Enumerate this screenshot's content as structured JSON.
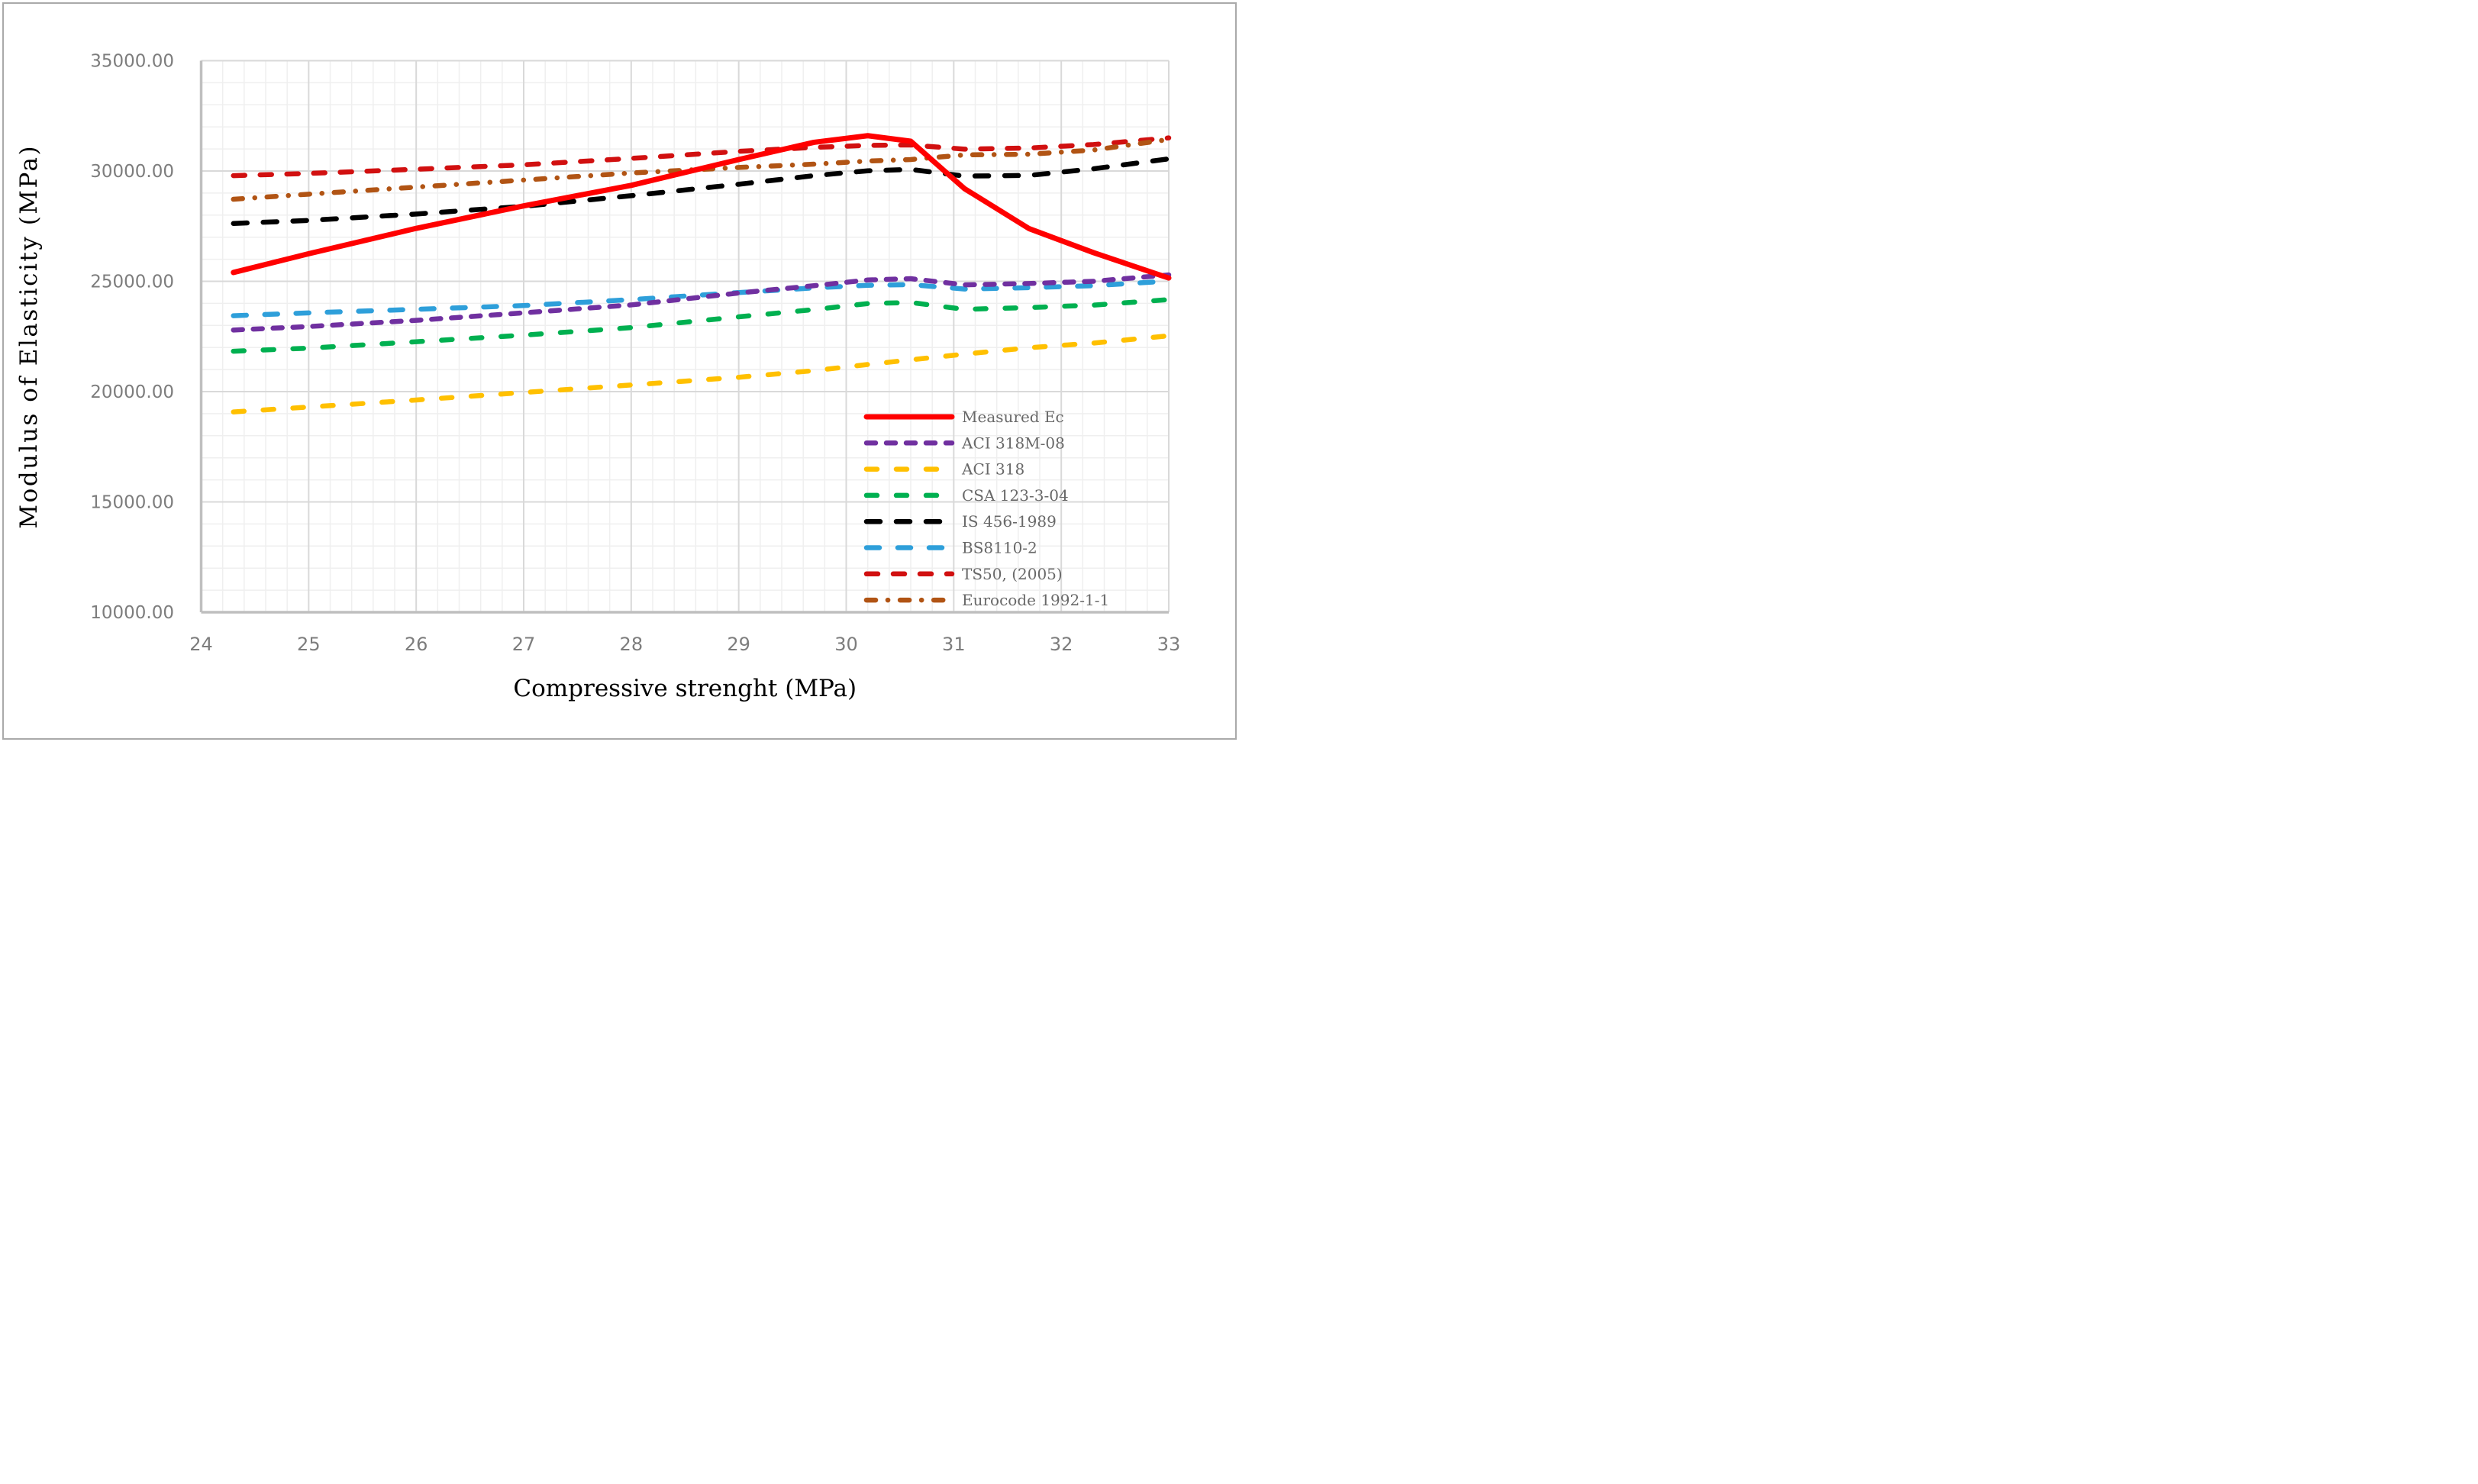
{
  "figure": {
    "type": "line-chart-figure",
    "background": "#ffffff",
    "frame_border_color": "#aaaaaa"
  },
  "chart_data": {
    "type": "line",
    "title": "",
    "xlabel": "Compressive strenght (MPa)",
    "ylabel": "Modulus of Elasticity (MPa)",
    "xlim": [
      24,
      33
    ],
    "ylim": [
      10000,
      35000
    ],
    "x_major_step": 1,
    "x_minor_step": 0.2,
    "y_major_step": 5000,
    "y_minor_step": 1000,
    "grid": "on",
    "x_tick_labels": [
      "24",
      "25",
      "26",
      "27",
      "28",
      "29",
      "30",
      "31",
      "32",
      "33"
    ],
    "x_tick_values": [
      24,
      25,
      26,
      27,
      28,
      29,
      30,
      31,
      32,
      33
    ],
    "y_tick_labels": [
      "35000.00",
      "30000.00",
      "25000.00",
      "20000.00",
      "15000.00",
      "10000.00"
    ],
    "y_tick_values": [
      35000,
      30000,
      25000,
      20000,
      15000,
      10000
    ],
    "x": [
      24.3,
      25,
      26,
      27,
      28,
      29,
      29.7,
      30.2,
      30.6,
      31.1,
      31.7,
      32.3,
      33
    ],
    "series": [
      {
        "name": "Measured Ec",
        "color": "#ff0000",
        "style": "solid",
        "width": 7,
        "dash": "",
        "values": [
          25400,
          26250,
          27400,
          28420,
          29350,
          30520,
          31300,
          31600,
          31350,
          29200,
          27390,
          26300,
          25150
        ]
      },
      {
        "name": "ACI 318M-08",
        "color": "#7030a0",
        "style": "dashed",
        "width": 6.5,
        "dash": "12,14",
        "values": [
          22790,
          22950,
          23230,
          23570,
          23930,
          24470,
          24800,
          25060,
          25120,
          24840,
          24900,
          25000,
          25290
        ]
      },
      {
        "name": "ACI 318",
        "color": "#ffc000",
        "style": "dashed",
        "width": 6.5,
        "dash": "14,25",
        "values": [
          19080,
          19300,
          19620,
          19960,
          20300,
          20650,
          20950,
          21230,
          21440,
          21700,
          21990,
          22200,
          22530
        ]
      },
      {
        "name": "CSA 123-3-04",
        "color": "#00b050",
        "style": "dashed",
        "width": 6.5,
        "dash": "14,25",
        "values": [
          21830,
          21970,
          22260,
          22560,
          22900,
          23390,
          23720,
          23990,
          24040,
          23730,
          23810,
          23920,
          24170
        ]
      },
      {
        "name": "IS 456-1989",
        "color": "#000000",
        "style": "dashed",
        "width": 6.5,
        "dash": "18,21",
        "values": [
          27620,
          27760,
          28050,
          28400,
          28880,
          29400,
          29790,
          30010,
          30070,
          29770,
          29800,
          30100,
          30550
        ]
      },
      {
        "name": "BS8110-2",
        "color": "#2e9fda",
        "style": "dashed",
        "width": 6.5,
        "dash": "17,24",
        "values": [
          23440,
          23570,
          23730,
          23900,
          24170,
          24490,
          24700,
          24820,
          24850,
          24650,
          24710,
          24800,
          25010
        ]
      },
      {
        "name": "TS50, (2005)",
        "color": "#d11010",
        "style": "dashed",
        "width": 6.5,
        "dash": "15,20",
        "values": [
          29790,
          29890,
          30080,
          30280,
          30570,
          30890,
          31070,
          31160,
          31180,
          30990,
          31040,
          31200,
          31500
        ]
      },
      {
        "name": "Eurocode 1992-1-1",
        "color": "#b15414",
        "style": "dash-dot",
        "width": 6.5,
        "dash": "12,16,0.1,16",
        "values": [
          28720,
          28950,
          29270,
          29590,
          29910,
          30160,
          30310,
          30450,
          30520,
          30730,
          30760,
          30950,
          31430
        ]
      }
    ],
    "draw_order": [
      "ACI 318",
      "CSA 123-3-04",
      "BS8110-2",
      "ACI 318M-08",
      "TS50, (2005)",
      "Eurocode 1992-1-1",
      "IS 456-1989",
      "Measured Ec"
    ],
    "legend": {
      "position": "inside-right-lower",
      "entries": [
        "Measured Ec",
        "ACI 318M-08",
        "ACI 318",
        "CSA 123-3-04",
        "IS 456-1989",
        "BS8110-2",
        "TS50, (2005)",
        "Eurocode 1992-1-1"
      ]
    },
    "ui_colors": {
      "grid_minor": "#efefef",
      "grid_major": "#d9d9d9",
      "axis_line": "#bfbfbf",
      "tick_text": "#7d7d7d",
      "legend_text": "#686868",
      "title_text": "#000000"
    }
  }
}
